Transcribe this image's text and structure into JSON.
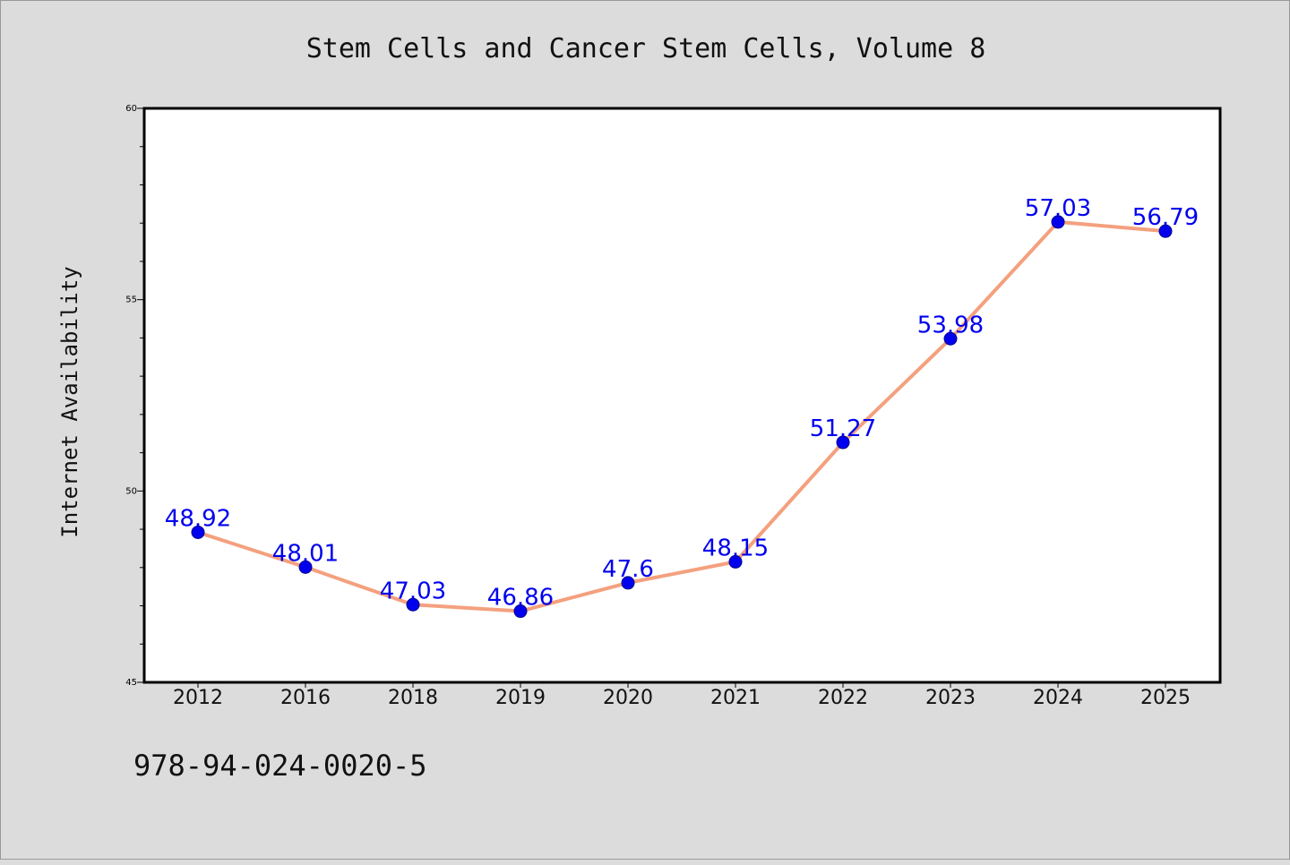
{
  "chart_data": {
    "type": "line",
    "title": "Stem Cells and Cancer Stem Cells, Volume 8",
    "xlabel": "",
    "ylabel": "Internet Availability",
    "categories": [
      "2012",
      "2016",
      "2018",
      "2019",
      "2020",
      "2021",
      "2022",
      "2023",
      "2024",
      "2025"
    ],
    "series": [
      {
        "values": [
          48.92,
          48.01,
          47.03,
          46.86,
          47.6,
          48.15,
          51.27,
          53.98,
          57.03,
          56.79
        ]
      }
    ],
    "ylim": [
      45,
      60
    ],
    "yticks": [
      "45",
      "50",
      "55",
      "60"
    ],
    "grid": false,
    "data_labels": [
      "48.92",
      "48.01",
      "47.03",
      "46.86",
      "47.6",
      "48.15",
      "51.27",
      "53.98",
      "57.03",
      "56.79"
    ],
    "line_color": "#f4a07e",
    "marker_color": "#0000ee",
    "label_color": "#0000ee"
  },
  "annotation": {
    "isbn": "978-94-024-0020-5"
  }
}
